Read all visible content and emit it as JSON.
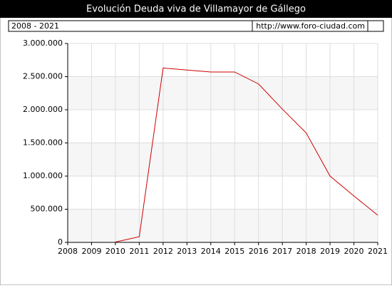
{
  "chart_data": {
    "type": "line",
    "title": "Evolución Deuda viva de Villamayor de Gállego",
    "period": "2008 - 2021",
    "source": "http://www.foro-ciudad.com",
    "x": [
      2010,
      2011,
      2012,
      2013,
      2014,
      2015,
      2016,
      2017,
      2018,
      2019,
      2020,
      2021
    ],
    "series": [
      {
        "name": "Deuda viva",
        "color": "#cc0000",
        "values": [
          5000,
          85000,
          2630000,
          2600000,
          2570000,
          2570000,
          2390000,
          2010000,
          1650000,
          1000000,
          700000,
          410000
        ]
      }
    ],
    "xlim": [
      2008,
      2021
    ],
    "xticks": [
      2008,
      2009,
      2010,
      2011,
      2012,
      2013,
      2014,
      2015,
      2016,
      2017,
      2018,
      2019,
      2020,
      2021
    ],
    "ylim": [
      0,
      3000000
    ],
    "yticks": [
      {
        "value": 0,
        "label": "0"
      },
      {
        "value": 500000,
        "label": "500.000"
      },
      {
        "value": 1000000,
        "label": "1.000.000"
      },
      {
        "value": 1500000,
        "label": "1.500.000"
      },
      {
        "value": 2000000,
        "label": "2.000.000"
      },
      {
        "value": 2500000,
        "label": "2.500.000"
      },
      {
        "value": 3000000,
        "label": "3.000.000"
      }
    ],
    "grid": true,
    "band_color": "#f6f6f6"
  }
}
